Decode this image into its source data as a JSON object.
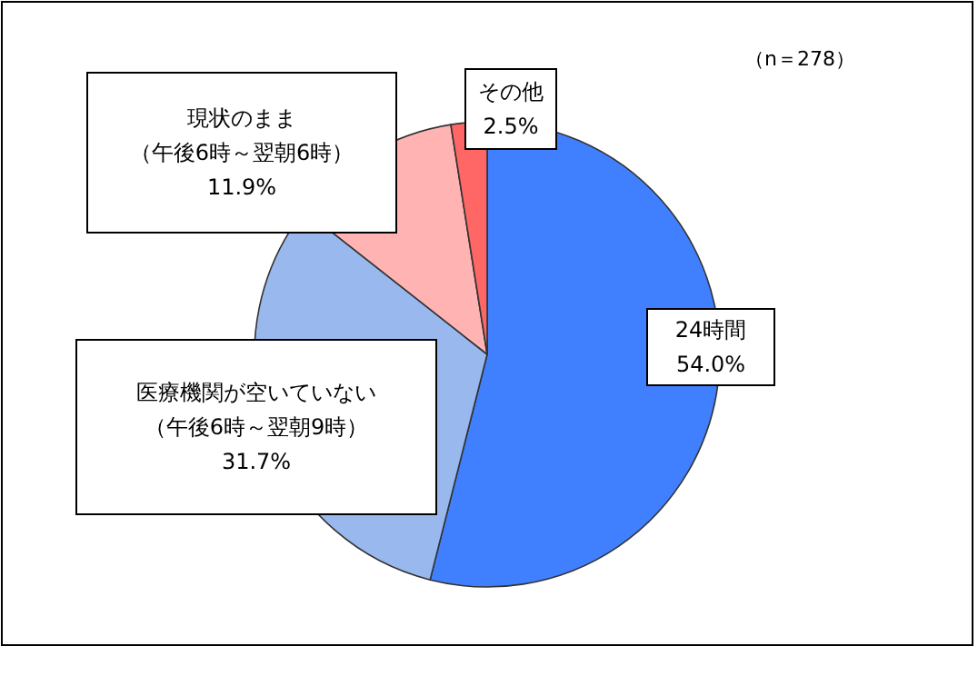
{
  "chart_data": {
    "type": "pie",
    "categories": [
      "24時間",
      "医療機関が空いていない（午後6時～翌朝9時）",
      "現状のまま（午後6時～翌朝6時）",
      "その他"
    ],
    "values": [
      54.0,
      31.7,
      11.9,
      2.5
    ],
    "colors": [
      "#4080ff",
      "#99b8ee",
      "#ffb3b3",
      "#ff6666"
    ],
    "value_labels": [
      "54.0%",
      "31.7%",
      "11.9%",
      "2.5%"
    ],
    "annotations": [
      "（n＝278）"
    ]
  }
}
